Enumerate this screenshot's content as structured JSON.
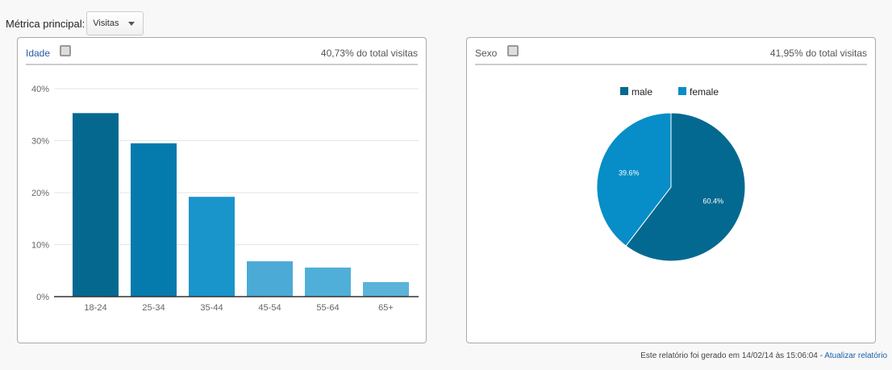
{
  "metric": {
    "label": "Métrica principal:",
    "value": "Visitas"
  },
  "age_panel": {
    "title": "Idade",
    "total": "40,73% do total visitas"
  },
  "sex_panel": {
    "title": "Sexo",
    "total": "41,95% do total visitas"
  },
  "footer": {
    "text": "Este relatório foi gerado em 14/02/14 às 15:06:04 - ",
    "link": "Atualizar relatório"
  },
  "chart_data": [
    {
      "type": "bar",
      "title": "Idade",
      "categories": [
        "18-24",
        "25-34",
        "35-44",
        "45-54",
        "55-64",
        "65+"
      ],
      "values": [
        35.3,
        29.5,
        19.2,
        6.8,
        5.6,
        2.8
      ],
      "colors": [
        "#05698f",
        "#057aad",
        "#1995cb",
        "#4caad6",
        "#50afd8",
        "#5bb3d9"
      ],
      "yticks": [
        "0%",
        "10%",
        "20%",
        "30%",
        "40%"
      ],
      "ylim": [
        0,
        40
      ],
      "grid": true
    },
    {
      "type": "pie",
      "title": "Sexo",
      "legend": [
        "male",
        "female"
      ],
      "values": [
        60.4,
        39.6
      ],
      "labels": [
        "60.4%",
        "39.6%"
      ],
      "colors": [
        "#046990",
        "#078dc7"
      ],
      "legend_position": "top"
    }
  ]
}
